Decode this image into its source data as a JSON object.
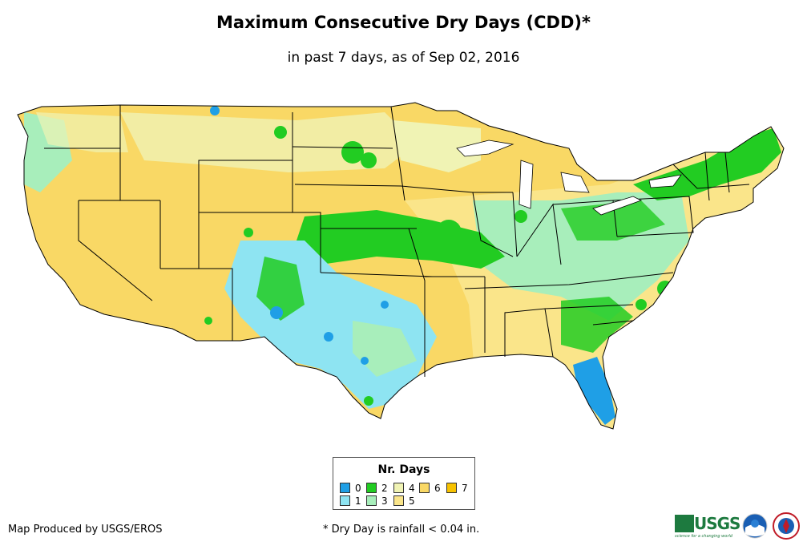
{
  "title": "Maximum Consecutive Dry Days (CDD)*",
  "subtitle": "in past 7 days, as of Sep 02, 2016",
  "legend": {
    "title": "Nr. Days",
    "items": [
      {
        "label": "0",
        "color": "#1f9fe6"
      },
      {
        "label": "1",
        "color": "#8ee4f2"
      },
      {
        "label": "2",
        "color": "#22cc22"
      },
      {
        "label": "3",
        "color": "#a8eebb"
      },
      {
        "label": "4",
        "color": "#f0f3b4"
      },
      {
        "label": "5",
        "color": "#fae58a"
      },
      {
        "label": "6",
        "color": "#f9d865"
      },
      {
        "label": "7",
        "color": "#f7c200"
      }
    ]
  },
  "credit": "Map Produced by USGS/EROS",
  "footnote": "* Dry Day is rainfall < 0.04 in.",
  "logos": {
    "usgs": "USGS",
    "usgs_tagline": "science for a changing world",
    "noaa": "noaa",
    "nws": "nws-logo"
  },
  "map": {
    "border_color": "#000000",
    "dominant_colors": {
      "west": "#f9d865",
      "plains": "#f9d865",
      "east": "#a8eebb"
    }
  }
}
